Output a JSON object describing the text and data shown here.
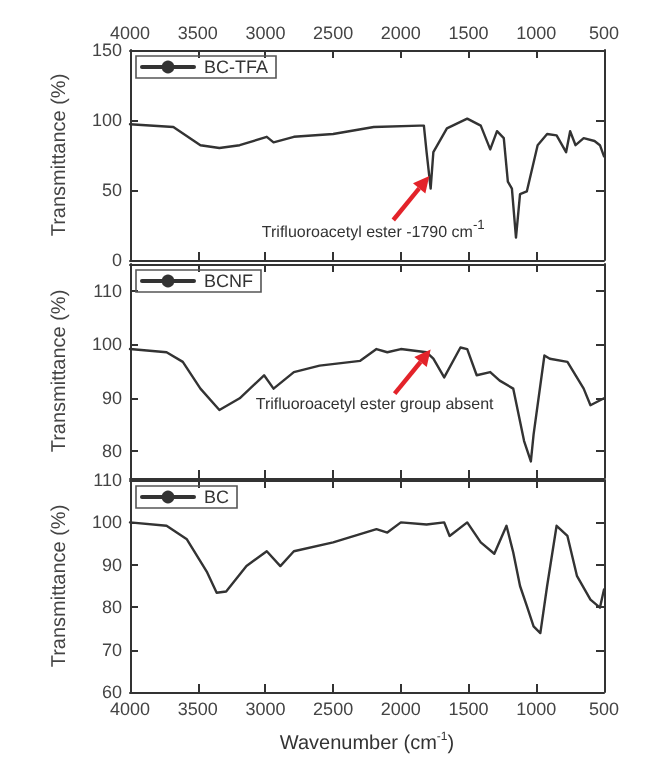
{
  "chart_data": [
    {
      "type": "line",
      "ylabel": "Transmittance (%)",
      "legend": "top left",
      "x": [
        4000,
        3680,
        3480,
        3340,
        3190,
        2990,
        2940,
        2790,
        2500,
        2200,
        1860,
        1830,
        1810,
        1780,
        1760,
        1660,
        1510,
        1410,
        1340,
        1290,
        1240,
        1210,
        1180,
        1150,
        1120,
        1070,
        990,
        920,
        850,
        780,
        750,
        710,
        650,
        570,
        530,
        500
      ],
      "series": [
        {
          "name": "BC-TFA",
          "color": "#333333",
          "values": [
            97,
            95,
            82,
            80,
            82,
            88,
            84,
            88,
            90,
            95,
            96,
            96,
            77,
            51,
            77,
            94,
            101,
            96,
            79,
            92,
            87,
            56,
            51,
            16,
            47,
            49,
            82,
            90,
            89,
            77,
            92,
            82,
            87,
            85,
            82,
            74
          ]
        }
      ],
      "annotations": [
        {
          "text": "Trifluoroacetyl ester -1790 cm$^{-1}$",
          "x": 1790,
          "y": 60
        }
      ],
      "xlim": [
        4000,
        500
      ],
      "xticks": [
        4000,
        3500,
        3000,
        2500,
        2000,
        1500,
        1000,
        500
      ],
      "x2lim": [
        4000,
        500
      ],
      "x2ticks": [
        4000,
        3500,
        3000,
        2500,
        2000,
        1500,
        1000,
        500
      ],
      "ylim": [
        0,
        150
      ],
      "yticks": [
        0,
        50,
        100,
        150
      ],
      "tick_labels": "y"
    },
    {
      "type": "line",
      "ylabel": "Transmittance (%)",
      "legend": "top left",
      "x": [
        4000,
        3730,
        3610,
        3480,
        3340,
        3190,
        3010,
        2940,
        2790,
        2600,
        2300,
        2180,
        2100,
        2000,
        1810,
        1760,
        1680,
        1560,
        1510,
        1440,
        1340,
        1270,
        1170,
        1090,
        1040,
        1020,
        940,
        900,
        770,
        650,
        600,
        500
      ],
      "series": [
        {
          "name": "BCNF",
          "color": "#333333",
          "values": [
            99.1,
            98.5,
            96.7,
            91.7,
            87.7,
            89.9,
            94.2,
            91.7,
            94.8,
            96,
            96.9,
            99.1,
            98.5,
            99.1,
            98.5,
            97.3,
            93.8,
            99.4,
            99.1,
            94.2,
            94.8,
            93.2,
            91.7,
            81.9,
            78.1,
            83.1,
            97.9,
            97.3,
            96.7,
            91.7,
            88.6,
            89.9
          ]
        }
      ],
      "annotations": [
        {
          "text": "Trifluoroacetyl ester group absent",
          "x": 1780,
          "y": 99
        }
      ],
      "xlim": [
        4000,
        500
      ],
      "xticks": [
        4000,
        3500,
        3000,
        2500,
        2000,
        1500,
        1000,
        500
      ],
      "ylim": [
        75,
        115
      ],
      "yticks": [
        80,
        90,
        100,
        110
      ],
      "tick_labels": "y"
    },
    {
      "type": "line",
      "ylabel": "Transmittance (%)",
      "xlabel": "Wavenumber (cm$^{-1}$)",
      "legend": "top left",
      "x": [
        4000,
        3730,
        3580,
        3430,
        3360,
        3290,
        3140,
        2990,
        2890,
        2790,
        2500,
        2180,
        2100,
        2000,
        1810,
        1680,
        1640,
        1510,
        1410,
        1310,
        1220,
        1170,
        1120,
        1070,
        1020,
        970,
        920,
        850,
        770,
        700,
        600,
        530,
        500
      ],
      "series": [
        {
          "name": "BC",
          "color": "#333333",
          "values": [
            100,
            99.2,
            96,
            88.2,
            83.4,
            83.7,
            89.7,
            93.2,
            89.7,
            93.2,
            95.3,
            98.4,
            97.6,
            100,
            99.5,
            100,
            96.8,
            100,
            95.3,
            92.6,
            99.2,
            92.9,
            85,
            80.3,
            75.5,
            73.9,
            85,
            99.2,
            96.8,
            87.4,
            81.8,
            79.9,
            84.2
          ]
        }
      ],
      "xlim": [
        4000,
        500
      ],
      "xticks": [
        4000,
        3500,
        3000,
        2500,
        2000,
        1500,
        1000,
        500
      ],
      "ylim": [
        60,
        110
      ],
      "yticks": [
        60,
        70,
        80,
        90,
        100,
        110
      ]
    }
  ]
}
